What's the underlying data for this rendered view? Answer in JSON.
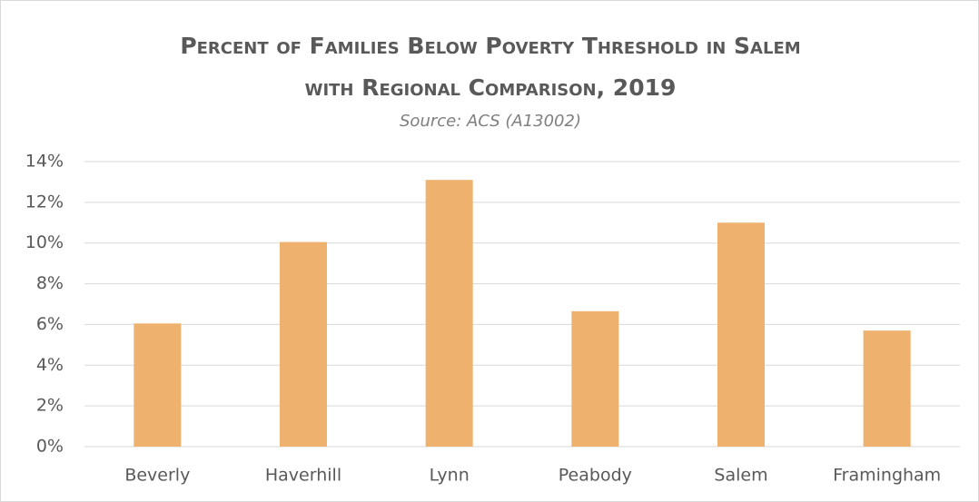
{
  "chart_data": {
    "type": "bar",
    "title": [
      "Percent of Families Below Poverty Threshold in Salem",
      "with Regional Comparison, 2019"
    ],
    "subtitle": "Source: ACS (A13002)",
    "categories": [
      "Beverly",
      "Haverhill",
      "Lynn",
      "Peabody",
      "Salem",
      "Framingham"
    ],
    "values": [
      6.05,
      10.05,
      13.1,
      6.65,
      11.0,
      5.7
    ],
    "color": "#eeb26e",
    "ylim": [
      0,
      14
    ],
    "yticks": [
      {
        "value": 0,
        "label": "0%"
      },
      {
        "value": 2,
        "label": "2%"
      },
      {
        "value": 4,
        "label": "4%"
      },
      {
        "value": 6,
        "label": "6%"
      },
      {
        "value": 8,
        "label": "8%"
      },
      {
        "value": 10,
        "label": "10%"
      },
      {
        "value": 12,
        "label": "12%"
      },
      {
        "value": 14,
        "label": "14%"
      }
    ],
    "grid": true
  }
}
